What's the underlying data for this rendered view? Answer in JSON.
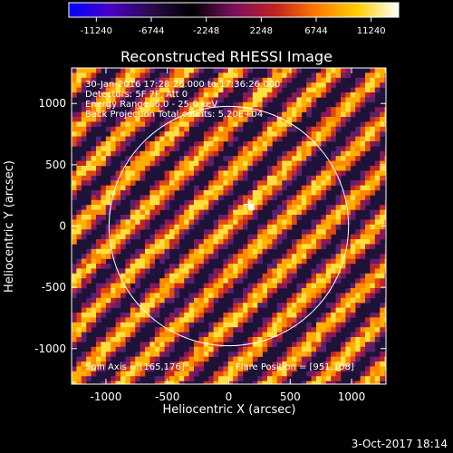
{
  "colorbar": {
    "tick_labels": [
      "-11240",
      "-6744",
      "-2248",
      "2248",
      "6744",
      "11240"
    ],
    "range": [
      -11240,
      11240
    ],
    "colormap": [
      "#0000ff",
      "#4a00c8",
      "#2a0a4a",
      "#000000",
      "#7a1060",
      "#c02020",
      "#ff7a00",
      "#ffd000",
      "#ffffff"
    ]
  },
  "plot": {
    "title": "Reconstructed RHESSI Image",
    "xlabel": "Heliocentric X (arcsec)",
    "ylabel": "Heliocentric Y (arcsec)",
    "xlim": [
      -1280,
      1280
    ],
    "ylim": [
      -1290,
      1290
    ],
    "x_ticks": [
      "-1000",
      "-500",
      "0",
      "500",
      "1000"
    ],
    "y_ticks": [
      "1000",
      "500",
      "0",
      "-500",
      "-1000"
    ],
    "tick_values": [
      -1000,
      -500,
      0,
      500,
      1000
    ],
    "annotations": [
      "30-Jan-2016 17:28:26.000 to 17:36:26.000",
      "Detectors: 5F 7F, Att 0",
      "Energy Range: 6.0 - 25.0 keV",
      "Back Projection  Total counts: 5.20E+04"
    ],
    "spin_axis": "Spin Axis = [165,176]",
    "flare_position": "Flare Position = [951,108]",
    "solar_limb_radius_arcsec": 975,
    "source_marker": {
      "x": 165,
      "y": 176
    },
    "bright_pixel": {
      "x": 185,
      "y": 150
    }
  },
  "footer": {
    "date": "3-Oct-2017 18:14"
  }
}
